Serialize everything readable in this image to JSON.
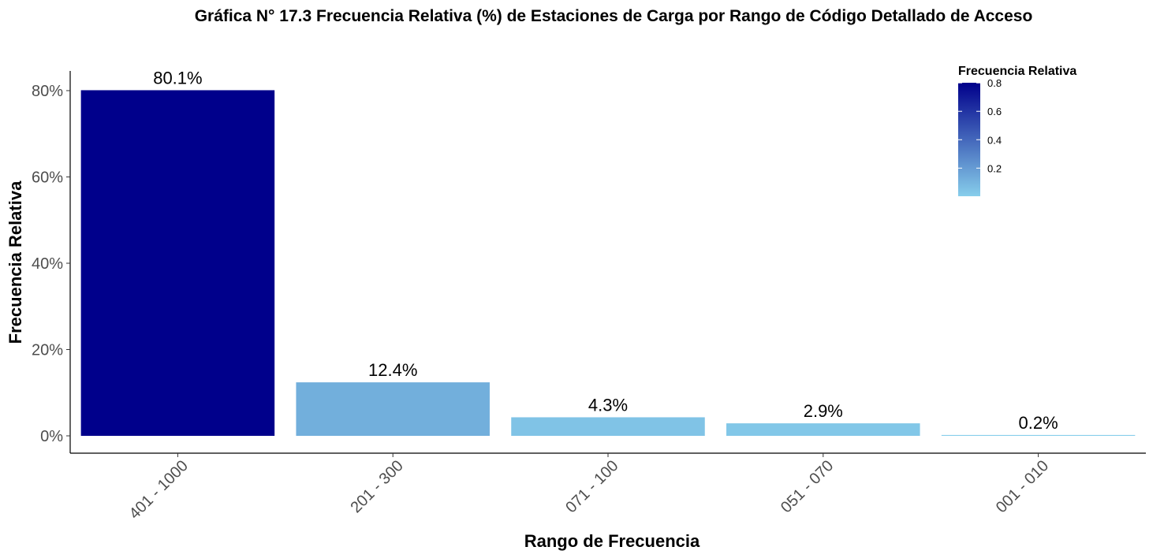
{
  "chart_data": {
    "type": "bar",
    "title": "Gráfica N° 17.3 Frecuencia Relativa (%) de Estaciones de Carga por Rango de Código Detallado de Acceso",
    "xlabel": "Rango de Frecuencia",
    "ylabel": "Frecuencia Relativa",
    "categories": [
      "401 - 1000",
      "201 - 300",
      "071 - 100",
      "051 - 070",
      "001 - 010"
    ],
    "values": [
      0.801,
      0.124,
      0.043,
      0.029,
      0.002
    ],
    "data_labels": [
      "80.1%",
      "12.4%",
      "4.3%",
      "2.9%",
      "0.2%"
    ],
    "ylim": [
      0,
      0.84
    ],
    "yticks": [
      0,
      0.2,
      0.4,
      0.6,
      0.8
    ],
    "ytick_labels": [
      "0%",
      "20%",
      "40%",
      "60%",
      "80%"
    ],
    "grid": false,
    "legend": {
      "title": "Frecuencia Relativa",
      "type": "colorbar",
      "position": "top-right",
      "ticks": [
        0.2,
        0.4,
        0.6,
        0.8
      ],
      "tick_labels": [
        "0.2",
        "0.4",
        "0.6",
        "0.8"
      ],
      "range": [
        0.002,
        0.801
      ],
      "color_low": "#87CEEB",
      "color_high": "#00008B"
    }
  }
}
